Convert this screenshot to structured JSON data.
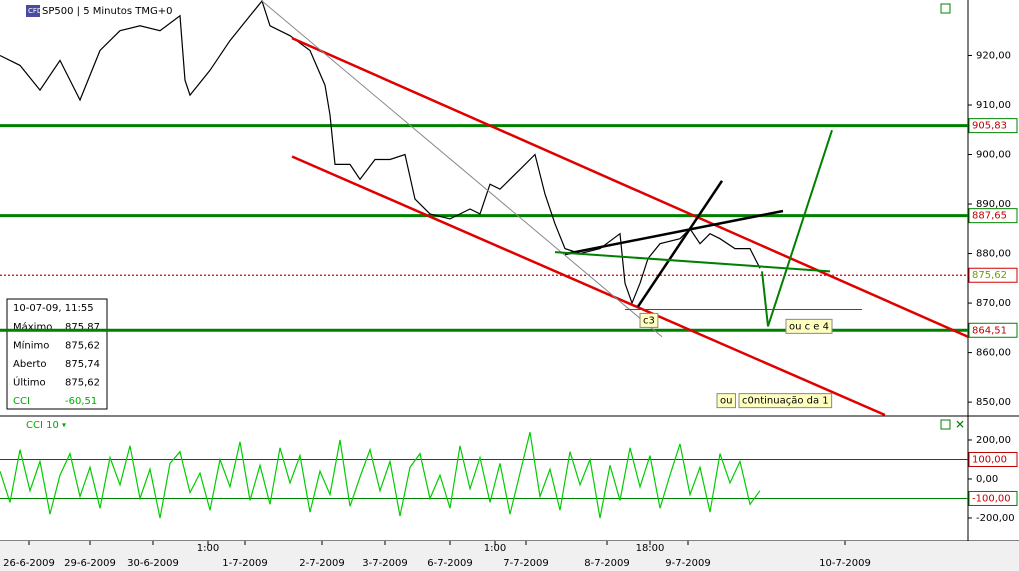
{
  "chart_data": [
    {
      "type": "line",
      "title": "SP500 | 5 Minutos TMG+0",
      "badge": "CFD",
      "color": "#000000",
      "x": [
        0,
        20,
        40,
        60,
        80,
        100,
        120,
        140,
        160,
        180,
        185,
        190,
        210,
        230,
        250,
        262,
        270,
        290,
        310,
        325,
        330,
        335,
        350,
        360,
        375,
        390,
        405,
        415,
        430,
        450,
        470,
        480,
        490,
        500,
        520,
        535,
        545,
        555,
        565,
        580,
        600,
        620,
        625,
        632,
        640,
        648,
        660,
        680,
        690,
        700,
        710,
        720,
        735,
        750,
        760
      ],
      "values": [
        920,
        918,
        913,
        919,
        911,
        921,
        925,
        926,
        925,
        928,
        915,
        912,
        917,
        923,
        928,
        931,
        926,
        924,
        921,
        914,
        908,
        898,
        898,
        895,
        899,
        899,
        900,
        891,
        888,
        887,
        889,
        888,
        894,
        893,
        897,
        900,
        892,
        886,
        881,
        880,
        881,
        884,
        874,
        870,
        874,
        879,
        882,
        883,
        885,
        882,
        884,
        883,
        881,
        881,
        877
      ],
      "xlim": [
        0,
        968
      ],
      "ylim": [
        847.4,
        931.2
      ],
      "yticks": [
        {
          "value": 920,
          "label": "920,00"
        },
        {
          "value": 910,
          "label": "910,00"
        },
        {
          "value": 900,
          "label": "900,00"
        },
        {
          "value": 890,
          "label": "890,00"
        },
        {
          "value": 880,
          "label": "880,00"
        },
        {
          "value": 870,
          "label": "870,00"
        },
        {
          "value": 860,
          "label": "860,00"
        },
        {
          "value": 850,
          "label": "850,00"
        }
      ],
      "hlines": [
        {
          "value": 905.83,
          "label": "905,83",
          "color": "#008000",
          "text_color": "#c00000"
        },
        {
          "value": 887.65,
          "label": "887,65",
          "color": "#008000",
          "text_color": "#c00000"
        },
        {
          "value": 875.62,
          "label": "875,62",
          "color": "#d00000",
          "text_color": "#6aa000",
          "style": "dotted"
        },
        {
          "value": 864.51,
          "label": "864,51",
          "color": "#008000",
          "text_color": "#c00000"
        }
      ],
      "trendlines": [
        {
          "x": [
            292,
            968
          ],
          "y": [
            923.5,
            863.2
          ],
          "color": "#e00000",
          "width": 2.5
        },
        {
          "x": [
            292,
            885
          ],
          "y": [
            899.6,
            847.4
          ],
          "color": "#e00000",
          "width": 2.5
        },
        {
          "x": [
            262,
            662
          ],
          "y": [
            931,
            863.2
          ],
          "color": "#888888",
          "width": 1
        },
        {
          "x": [
            638,
            722
          ],
          "y": [
            869.3,
            894.7
          ],
          "color": "#000000",
          "width": 2.5
        },
        {
          "x": [
            565,
            783
          ],
          "y": [
            879.9,
            888.6
          ],
          "color": "#000000",
          "width": 2.5
        },
        {
          "x": [
            555,
            830
          ],
          "y": [
            880.3,
            876.4
          ],
          "color": "#008000",
          "width": 2
        },
        {
          "x": [
            625,
            862
          ],
          "y": [
            868.7,
            868.7
          ],
          "color": "#008000",
          "width": 1
        },
        {
          "x": [
            762,
            768,
            832
          ],
          "y": [
            876.4,
            865.3,
            904.9
          ],
          "color": "#008000",
          "width": 2
        }
      ],
      "notes": [
        {
          "text": "c3",
          "x": 640,
          "y": 866.5
        },
        {
          "text": "ou c e 4",
          "x": 786,
          "y": 865.3
        },
        {
          "text": "ou",
          "x": 717,
          "y": 850.3
        },
        {
          "text": "c0ntinuação da 1",
          "x": 739,
          "y": 850.3
        }
      ]
    },
    {
      "type": "line",
      "title": "CCI 10",
      "color": "#00cc00",
      "x": [
        0,
        10,
        20,
        30,
        40,
        50,
        60,
        70,
        80,
        90,
        100,
        110,
        120,
        130,
        140,
        150,
        160,
        170,
        180,
        190,
        200,
        210,
        220,
        230,
        240,
        250,
        260,
        270,
        280,
        290,
        300,
        310,
        320,
        330,
        340,
        350,
        360,
        370,
        380,
        390,
        400,
        410,
        420,
        430,
        440,
        450,
        460,
        470,
        480,
        490,
        500,
        510,
        520,
        530,
        540,
        550,
        560,
        570,
        580,
        590,
        600,
        610,
        620,
        630,
        640,
        650,
        660,
        670,
        680,
        690,
        700,
        710,
        720,
        730,
        740,
        750,
        760
      ],
      "values": [
        40,
        -120,
        150,
        -60,
        90,
        -180,
        20,
        130,
        -90,
        60,
        -150,
        110,
        -30,
        170,
        -100,
        50,
        -200,
        80,
        140,
        -70,
        30,
        -160,
        100,
        -40,
        190,
        -110,
        70,
        -130,
        160,
        -20,
        120,
        -170,
        40,
        -80,
        200,
        -140,
        10,
        150,
        -60,
        90,
        -190,
        60,
        130,
        -100,
        20,
        -150,
        170,
        -50,
        110,
        -120,
        80,
        -180,
        30,
        240,
        -90,
        50,
        -160,
        140,
        -30,
        100,
        -200,
        70,
        -110,
        160,
        -40,
        120,
        -150,
        20,
        180,
        -80,
        60,
        -170,
        130,
        -20,
        90,
        -130,
        -60
      ],
      "xlim": [
        0,
        968
      ],
      "ylim": [
        -313,
        323
      ],
      "yticks": [
        {
          "value": 200,
          "label": "200,00"
        },
        {
          "value": 0,
          "label": "0,00"
        },
        {
          "value": -200,
          "label": "-200,00"
        }
      ],
      "hlines": [
        {
          "value": 100,
          "label": "100,00",
          "color": "#c00000",
          "text_color": "#c00000"
        },
        {
          "value": -100,
          "label": "-100,00",
          "color": "#008000",
          "text_color": "#c00000"
        }
      ],
      "xticks": [
        {
          "value": 29,
          "label": "26-6-2009"
        },
        {
          "value": 90,
          "label": "29-6-2009"
        },
        {
          "value": 153,
          "label": "30-6-2009"
        },
        {
          "value": 245,
          "label": "1-7-2009"
        },
        {
          "value": 322,
          "label": "2-7-2009"
        },
        {
          "value": 385,
          "label": "3-7-2009"
        },
        {
          "value": 450,
          "label": "6-7-2009"
        },
        {
          "value": 526,
          "label": "7-7-2009"
        },
        {
          "value": 607,
          "label": "8-7-2009"
        },
        {
          "value": 688,
          "label": "9-7-2009"
        },
        {
          "value": 845,
          "label": "10-7-2009"
        }
      ],
      "time_ticks": [
        {
          "value": 208,
          "label": "1:00"
        },
        {
          "value": 495,
          "label": "1:00"
        },
        {
          "value": 650,
          "label": "18:00"
        }
      ]
    }
  ],
  "info_box": {
    "title": "10-07-09, 11:55",
    "rows": [
      [
        "Máximo",
        "875,87"
      ],
      [
        "Mínimo",
        "875,62"
      ],
      [
        "Aberto",
        "875,74"
      ],
      [
        "Último",
        "875,62"
      ],
      [
        "CCI",
        "-60,51"
      ]
    ]
  }
}
